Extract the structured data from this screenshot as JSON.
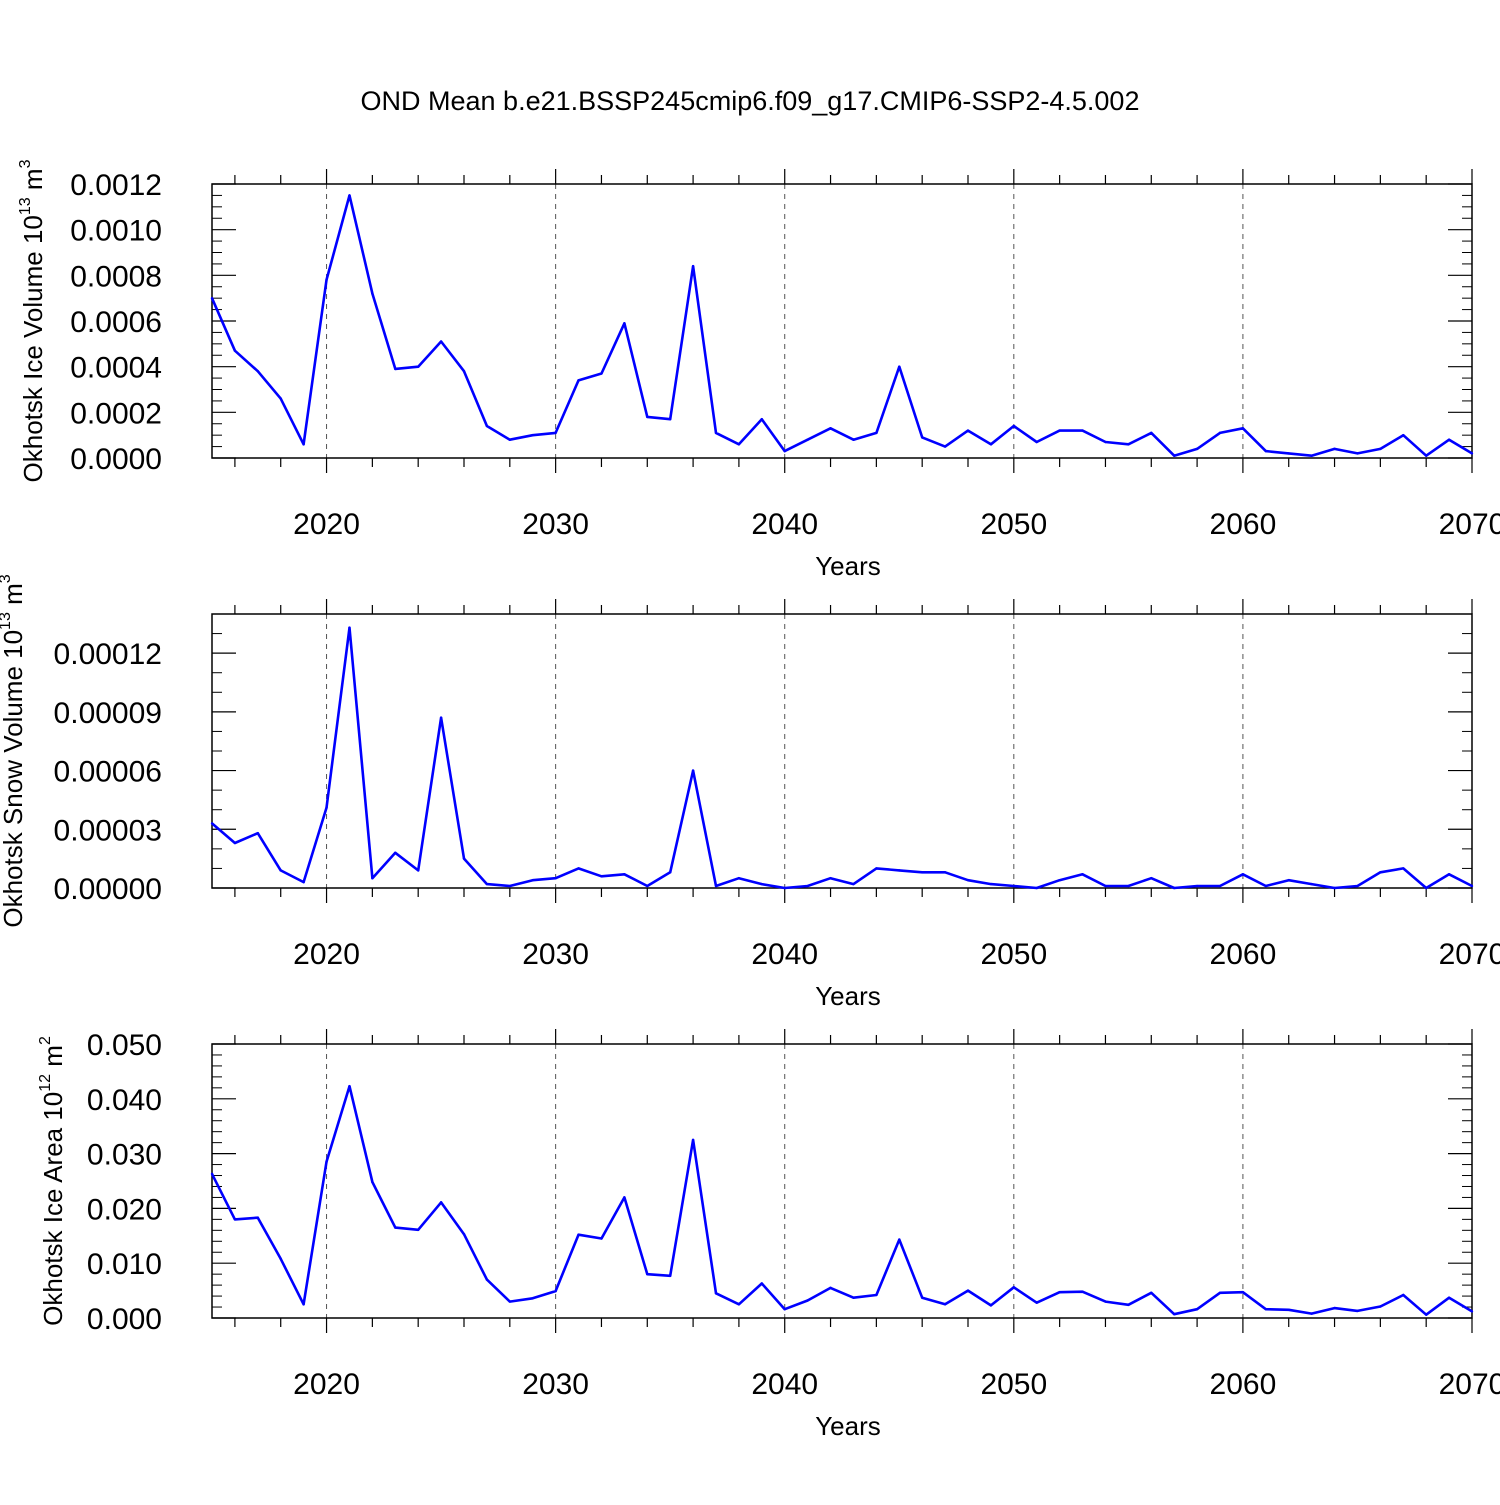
{
  "title": "OND Mean b.e21.BSSP245cmip6.f09_g17.CMIP6-SSP2-4.5.002",
  "colors": {
    "line": "#0000ff",
    "axis": "#000000",
    "grid": "#555555"
  },
  "chart_data": [
    {
      "type": "line",
      "ylabel": "Okhotsk Ice Volume 10",
      "ylabel_exp": "13",
      "ylabel_unit": " m",
      "ylabel_unit_exp": "3",
      "xlabel": "Years",
      "xlim": [
        2015,
        2070
      ],
      "ylim": [
        0,
        0.0012
      ],
      "yticks": [
        0,
        0.0002,
        0.0004,
        0.0006,
        0.0008,
        0.001,
        0.0012
      ],
      "yticklabels": [
        "0.0000",
        "0.0002",
        "0.0004",
        "0.0006",
        "0.0008",
        "0.0010",
        "0.0012"
      ],
      "yminor_step": 5e-05,
      "xticks": [
        2020,
        2030,
        2040,
        2050,
        2060,
        2070
      ],
      "xticklabels": [
        "2020",
        "2030",
        "2040",
        "2050",
        "2060",
        "2070"
      ],
      "grid": "vertical dashed at major x ticks",
      "series": [
        {
          "x": [
            2015,
            2016,
            2017,
            2018,
            2019,
            2020,
            2021,
            2022,
            2023,
            2024,
            2025,
            2026,
            2027,
            2028,
            2029,
            2030,
            2031,
            2032,
            2033,
            2034,
            2035,
            2036,
            2037,
            2038,
            2039,
            2040,
            2041,
            2042,
            2043,
            2044,
            2045,
            2046,
            2047,
            2048,
            2049,
            2050,
            2051,
            2052,
            2053,
            2054,
            2055,
            2056,
            2057,
            2058,
            2059,
            2060,
            2061,
            2062,
            2063,
            2064,
            2065,
            2066,
            2067,
            2068,
            2069,
            2070
          ],
          "y": [
            0.0007,
            0.00047,
            0.00038,
            0.00026,
            6e-05,
            0.00078,
            0.00115,
            0.00072,
            0.00039,
            0.0004,
            0.00051,
            0.00038,
            0.00014,
            8e-05,
            0.0001,
            0.00011,
            0.00034,
            0.00037,
            0.00059,
            0.00018,
            0.00017,
            0.00084,
            0.00011,
            6e-05,
            0.00017,
            3e-05,
            8e-05,
            0.00013,
            8e-05,
            0.00011,
            0.0004,
            9e-05,
            5e-05,
            0.00012,
            6e-05,
            0.00014,
            7e-05,
            0.00012,
            0.00012,
            7e-05,
            6e-05,
            0.00011,
            1e-05,
            4e-05,
            0.00011,
            0.00013,
            3e-05,
            2e-05,
            1e-05,
            4e-05,
            2e-05,
            4e-05,
            0.0001,
            1e-05,
            8e-05,
            2e-05
          ]
        }
      ]
    },
    {
      "type": "line",
      "ylabel": "Okhotsk Snow Volume 10",
      "ylabel_exp": "13",
      "ylabel_unit": " m",
      "ylabel_unit_exp": "3",
      "xlabel": "Years",
      "xlim": [
        2015,
        2070
      ],
      "ylim": [
        0,
        0.00014
      ],
      "yticks": [
        0,
        3e-05,
        6e-05,
        9e-05,
        0.00012
      ],
      "yticklabels": [
        "0.00000",
        "0.00003",
        "0.00006",
        "0.00009",
        "0.00012"
      ],
      "yminor_step": 1e-05,
      "xticks": [
        2020,
        2030,
        2040,
        2050,
        2060,
        2070
      ],
      "xticklabels": [
        "2020",
        "2030",
        "2040",
        "2050",
        "2060",
        "2070"
      ],
      "grid": "vertical dashed at major x ticks",
      "series": [
        {
          "x": [
            2015,
            2016,
            2017,
            2018,
            2019,
            2020,
            2021,
            2022,
            2023,
            2024,
            2025,
            2026,
            2027,
            2028,
            2029,
            2030,
            2031,
            2032,
            2033,
            2034,
            2035,
            2036,
            2037,
            2038,
            2039,
            2040,
            2041,
            2042,
            2043,
            2044,
            2045,
            2046,
            2047,
            2048,
            2049,
            2050,
            2051,
            2052,
            2053,
            2054,
            2055,
            2056,
            2057,
            2058,
            2059,
            2060,
            2061,
            2062,
            2063,
            2064,
            2065,
            2066,
            2067,
            2068,
            2069,
            2070
          ],
          "y": [
            3.3e-05,
            2.3e-05,
            2.8e-05,
            9e-06,
            3e-06,
            4.1e-05,
            0.000133,
            5e-06,
            1.8e-05,
            9e-06,
            8.7e-05,
            1.5e-05,
            2e-06,
            1e-06,
            4e-06,
            5e-06,
            1e-05,
            6e-06,
            7e-06,
            1e-06,
            8e-06,
            6e-05,
            1e-06,
            5e-06,
            2e-06,
            0.0,
            1e-06,
            5e-06,
            2e-06,
            1e-05,
            9e-06,
            8e-06,
            8e-06,
            4e-06,
            2e-06,
            1e-06,
            0.0,
            4e-06,
            7e-06,
            1e-06,
            1e-06,
            5e-06,
            0.0,
            1e-06,
            1e-06,
            7e-06,
            1e-06,
            4e-06,
            2e-06,
            0.0,
            1e-06,
            8e-06,
            1e-05,
            0.0,
            7e-06,
            1e-06
          ]
        }
      ]
    },
    {
      "type": "line",
      "ylabel": "Okhotsk Ice Area 10",
      "ylabel_exp": "12",
      "ylabel_unit": " m",
      "ylabel_unit_exp": "2",
      "xlabel": "Years",
      "xlim": [
        2015,
        2070
      ],
      "ylim": [
        0,
        0.05
      ],
      "yticks": [
        0,
        0.01,
        0.02,
        0.03,
        0.04,
        0.05
      ],
      "yticklabels": [
        "0.000",
        "0.010",
        "0.020",
        "0.030",
        "0.040",
        "0.050"
      ],
      "yminor_step": 0.002,
      "xticks": [
        2020,
        2030,
        2040,
        2050,
        2060,
        2070
      ],
      "xticklabels": [
        "2020",
        "2030",
        "2040",
        "2050",
        "2060",
        "2070"
      ],
      "grid": "vertical dashed at major x ticks",
      "series": [
        {
          "x": [
            2015,
            2016,
            2017,
            2018,
            2019,
            2020,
            2021,
            2022,
            2023,
            2024,
            2025,
            2026,
            2027,
            2028,
            2029,
            2030,
            2031,
            2032,
            2033,
            2034,
            2035,
            2036,
            2037,
            2038,
            2039,
            2040,
            2041,
            2042,
            2043,
            2044,
            2045,
            2046,
            2047,
            2048,
            2049,
            2050,
            2051,
            2052,
            2053,
            2054,
            2055,
            2056,
            2057,
            2058,
            2059,
            2060,
            2061,
            2062,
            2063,
            2064,
            2065,
            2066,
            2067,
            2068,
            2069,
            2070
          ],
          "y": [
            0.0263,
            0.018,
            0.0183,
            0.0108,
            0.0025,
            0.0285,
            0.0423,
            0.0248,
            0.0165,
            0.0161,
            0.0211,
            0.0153,
            0.007,
            0.003,
            0.0036,
            0.0049,
            0.0152,
            0.0145,
            0.022,
            0.008,
            0.0077,
            0.0325,
            0.0045,
            0.0025,
            0.0063,
            0.0016,
            0.0032,
            0.0055,
            0.0037,
            0.0042,
            0.0143,
            0.0037,
            0.0025,
            0.005,
            0.0023,
            0.0056,
            0.0028,
            0.0047,
            0.0048,
            0.003,
            0.0024,
            0.0046,
            0.0007,
            0.0016,
            0.0046,
            0.0047,
            0.0016,
            0.0015,
            0.0008,
            0.0018,
            0.0013,
            0.0021,
            0.0042,
            0.0006,
            0.0037,
            0.0012
          ]
        }
      ]
    }
  ]
}
